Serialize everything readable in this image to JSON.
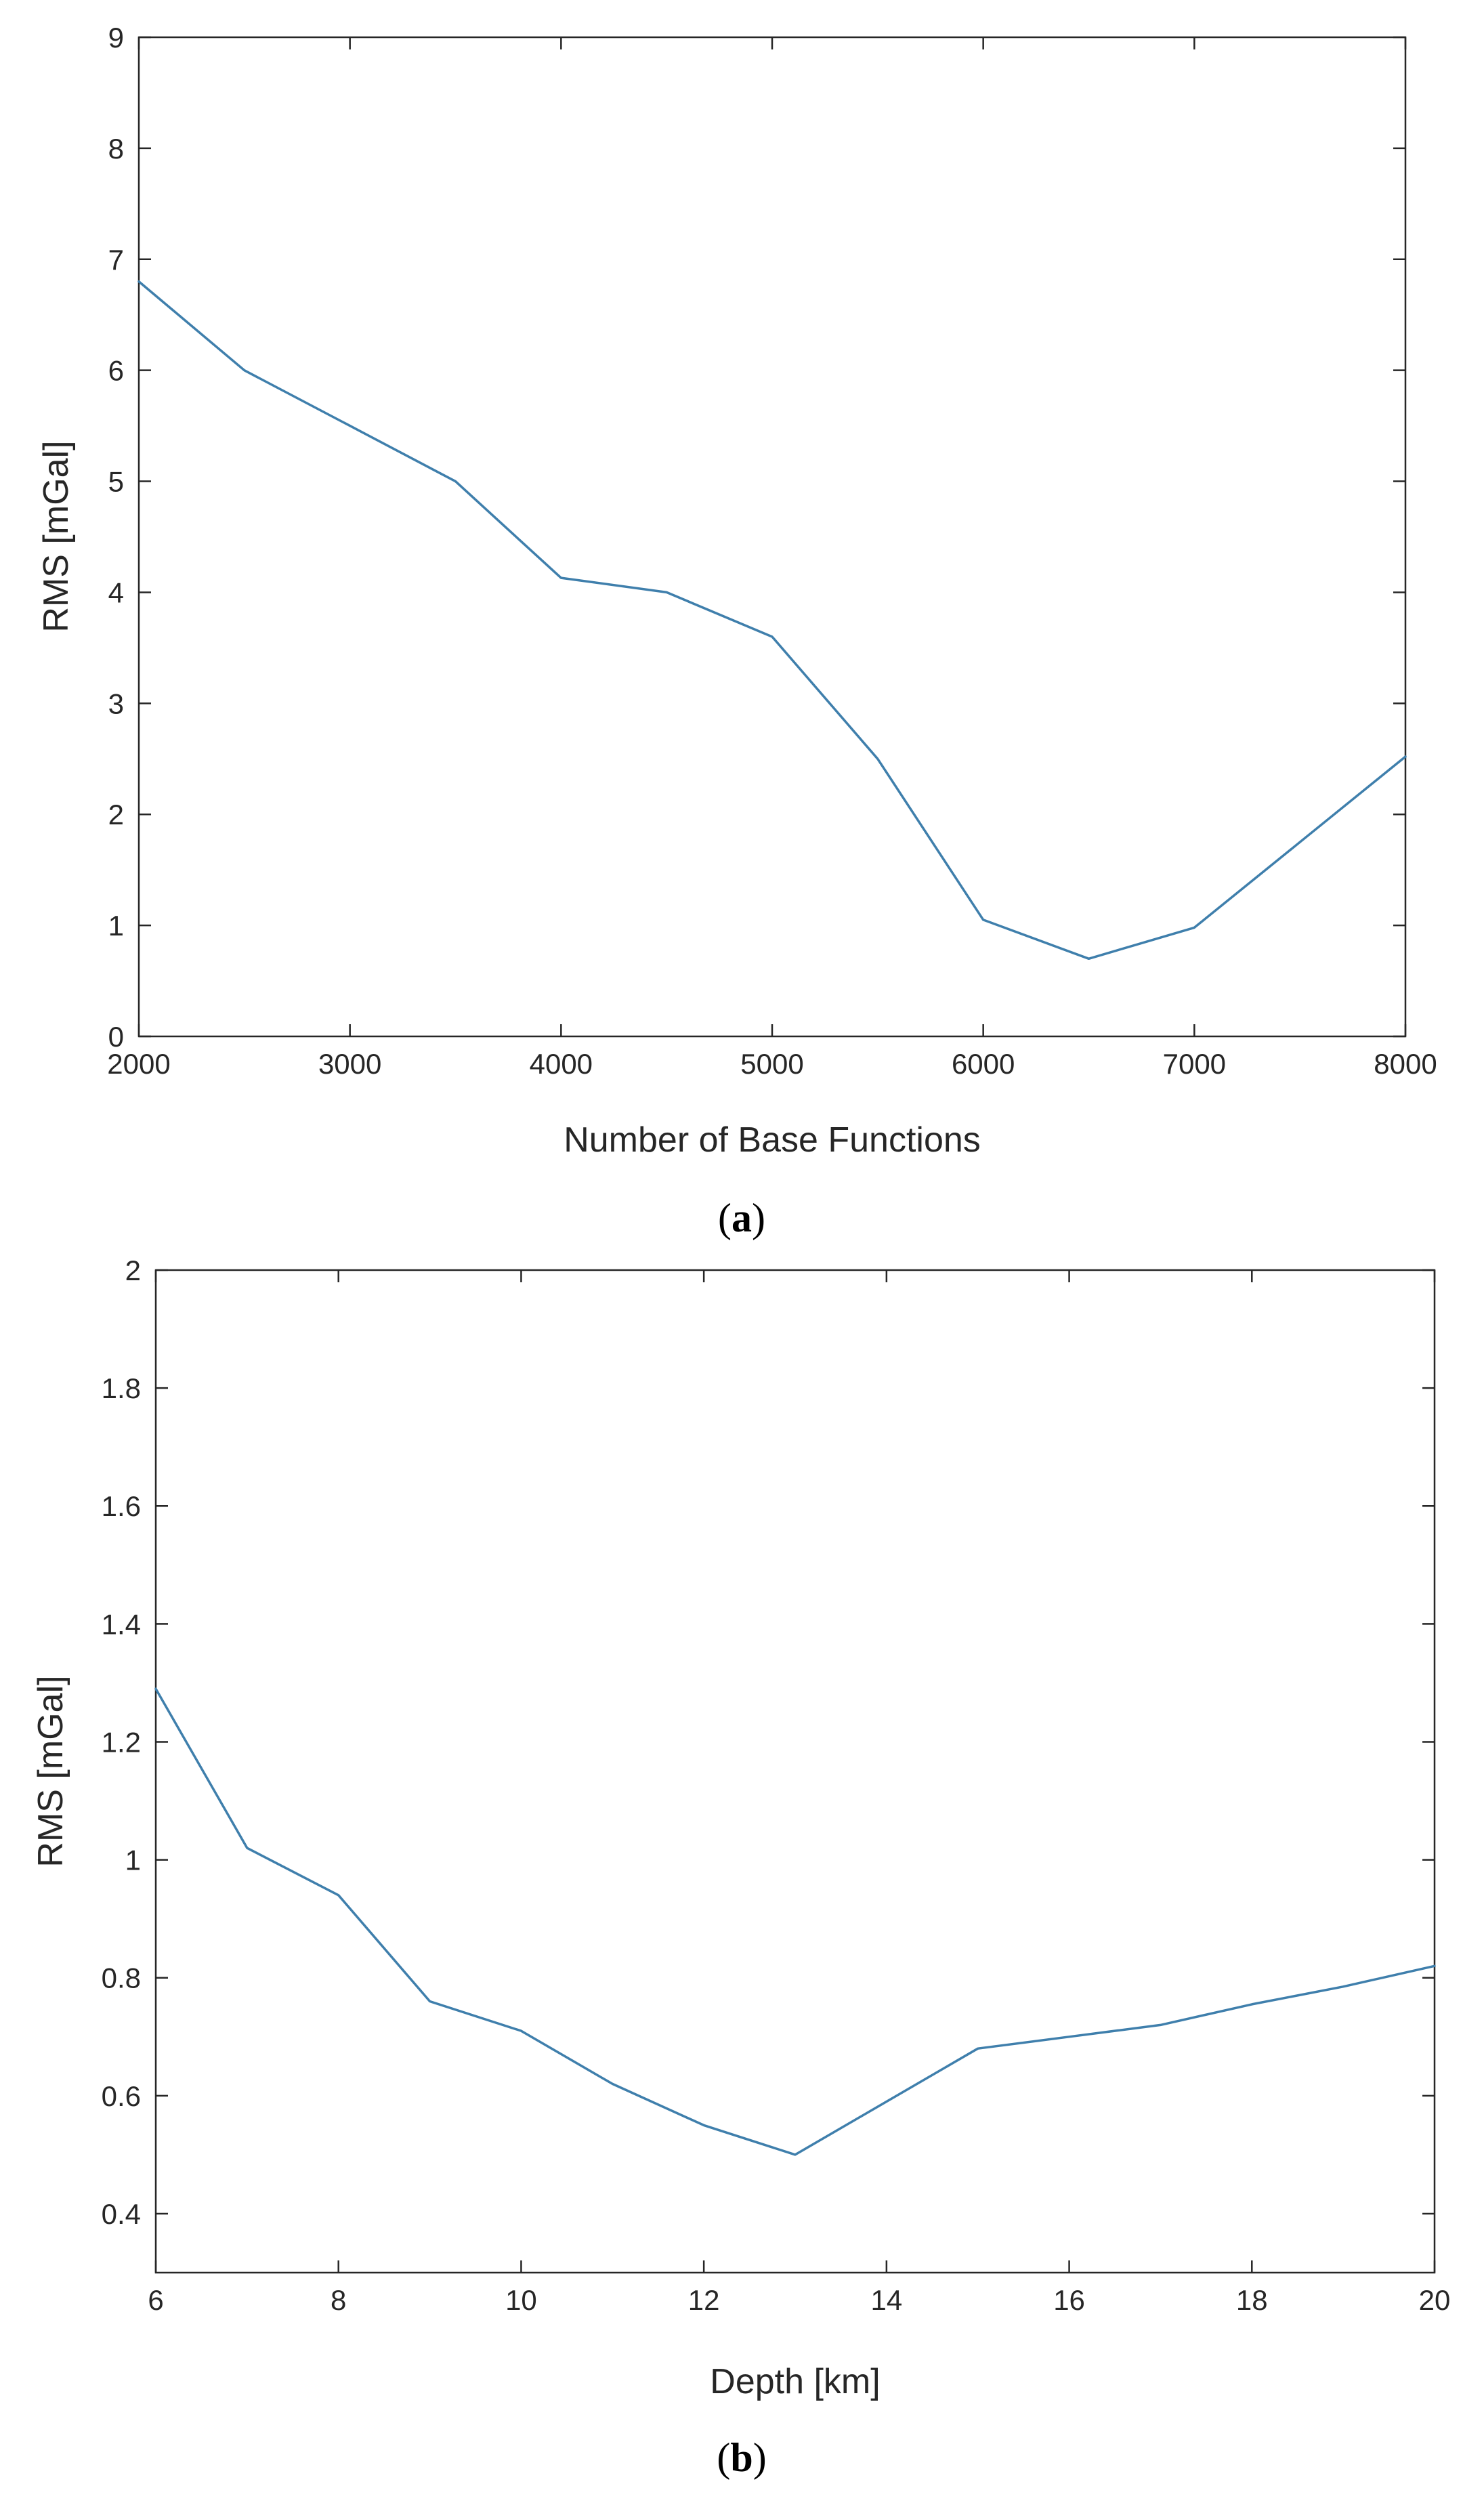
{
  "chart_data": [
    {
      "type": "line",
      "panel_label": "a",
      "xlabel": "Number of Base Functions",
      "ylabel": "RMS [mGal]",
      "xlim": [
        2000,
        8000
      ],
      "ylim": [
        0,
        9
      ],
      "xticks": [
        2000,
        3000,
        4000,
        5000,
        6000,
        7000,
        8000
      ],
      "yticks": [
        0,
        1,
        2,
        3,
        4,
        5,
        6,
        7,
        8,
        9
      ],
      "grid": false,
      "series": [
        {
          "color": "#3f7fac",
          "x": [
            2000,
            2500,
            3000,
            3500,
            4000,
            4500,
            5000,
            5500,
            6000,
            6500,
            7000,
            7500,
            8000
          ],
          "y": [
            6.8,
            6.0,
            5.5,
            5.0,
            4.13,
            4.0,
            3.6,
            2.5,
            1.05,
            0.7,
            0.98,
            1.75,
            2.52
          ]
        }
      ]
    },
    {
      "type": "line",
      "panel_label": "b",
      "xlabel": "Depth [km]",
      "ylabel": "RMS [mGal]",
      "xlim": [
        6,
        20
      ],
      "ylim": [
        0.3,
        2
      ],
      "xticks": [
        6,
        8,
        10,
        12,
        14,
        16,
        18,
        20
      ],
      "yticks": [
        0.4,
        0.6,
        0.8,
        1,
        1.2,
        1.4,
        1.6,
        1.8,
        2
      ],
      "grid": false,
      "series": [
        {
          "color": "#3f7fac",
          "x": [
            6,
            7,
            8,
            9,
            10,
            11,
            12,
            13,
            14,
            15,
            16,
            17,
            18,
            19,
            20
          ],
          "y": [
            1.29,
            1.02,
            0.94,
            0.76,
            0.71,
            0.62,
            0.55,
            0.5,
            0.59,
            0.68,
            0.7,
            0.72,
            0.755,
            0.785,
            0.82
          ]
        }
      ]
    }
  ]
}
